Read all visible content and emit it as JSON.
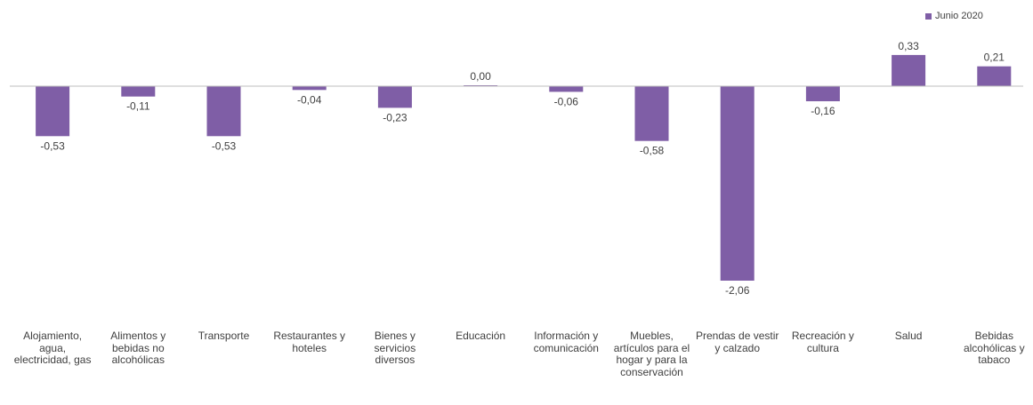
{
  "chart_data": {
    "type": "bar",
    "categories": [
      "Alojamiento, agua, electricidad, gas",
      "Alimentos y bebidas no alcohólicas",
      "Transporte",
      "Restaurantes y hoteles",
      "Bienes y servicios diversos",
      "Educación",
      "Información y comunicación",
      "Muebles, artículos para el hogar y para la conservación",
      "Prendas de vestir y calzado",
      "Recreación y cultura",
      "Salud",
      "Bebidas alcohólicas y tabaco"
    ],
    "series": [
      {
        "name": "Junio 2020",
        "color": "#7f5ea6",
        "values": [
          -0.53,
          -0.11,
          -0.53,
          -0.04,
          -0.23,
          0.0,
          -0.06,
          -0.58,
          -2.06,
          -0.16,
          0.33,
          0.21
        ],
        "labels": [
          "-0,53",
          "-0,11",
          "-0,53",
          "-0,04",
          "-0,23",
          "0,00",
          "-0,06",
          "-0,58",
          "-2,06",
          "-0,16",
          "0,33",
          "0,21"
        ]
      }
    ],
    "legend_position": "top-right",
    "grid": false,
    "ylim": [
      -2.06,
      0.33
    ]
  }
}
